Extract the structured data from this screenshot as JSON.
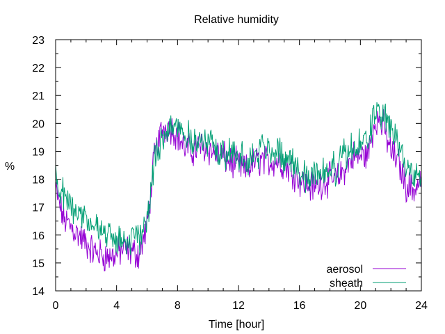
{
  "chart_data": {
    "type": "line",
    "title": "Relative humidity",
    "xlabel": "Time [hour]",
    "ylabel": "%",
    "xlim": [
      0,
      24
    ],
    "ylim": [
      14,
      23
    ],
    "xticks": [
      0,
      4,
      8,
      12,
      16,
      20,
      24
    ],
    "yticks": [
      14,
      15,
      16,
      17,
      18,
      19,
      20,
      21,
      22,
      23
    ],
    "grid": false,
    "legend_position": "bottom-right",
    "x": [
      0,
      0.5,
      1,
      1.5,
      2,
      2.5,
      3,
      3.5,
      4,
      4.5,
      5,
      5.5,
      6,
      6.5,
      7,
      7.5,
      8,
      8.5,
      9,
      9.5,
      10,
      10.5,
      11,
      11.5,
      12,
      12.5,
      13,
      13.5,
      14,
      14.5,
      15,
      15.5,
      16,
      16.5,
      17,
      17.5,
      18,
      18.5,
      19,
      19.5,
      20,
      20.5,
      21,
      21.5,
      22,
      22.5,
      23,
      23.5,
      24
    ],
    "series": [
      {
        "name": "aerosol",
        "color": "#9400d3",
        "values": [
          17.6,
          16.6,
          16.3,
          16.0,
          15.7,
          15.4,
          15.3,
          15.2,
          15.3,
          15.5,
          15.4,
          15.3,
          16.3,
          18.9,
          19.8,
          19.9,
          19.6,
          19.1,
          19.0,
          19.2,
          19.1,
          18.9,
          18.8,
          18.6,
          18.5,
          18.3,
          18.6,
          18.7,
          18.6,
          18.7,
          18.5,
          18.3,
          18.0,
          17.8,
          17.7,
          17.9,
          18.0,
          18.0,
          18.4,
          18.8,
          18.8,
          18.9,
          20.2,
          19.9,
          19.0,
          18.6,
          17.8,
          17.6,
          18.0
        ]
      },
      {
        "name": "sheath",
        "color": "#009e73",
        "values": [
          18.0,
          17.4,
          17.1,
          16.9,
          16.6,
          16.3,
          16.1,
          16.0,
          15.8,
          15.9,
          15.8,
          15.9,
          16.6,
          18.6,
          19.6,
          19.9,
          20.0,
          19.6,
          19.4,
          19.3,
          19.3,
          19.1,
          19.0,
          19.0,
          18.8,
          18.6,
          18.8,
          19.1,
          19.1,
          19.0,
          18.8,
          18.6,
          18.3,
          18.1,
          18.2,
          18.3,
          18.3,
          18.4,
          18.9,
          19.1,
          19.2,
          19.4,
          20.4,
          20.4,
          19.8,
          19.1,
          18.5,
          18.1,
          18.3
        ]
      }
    ]
  }
}
